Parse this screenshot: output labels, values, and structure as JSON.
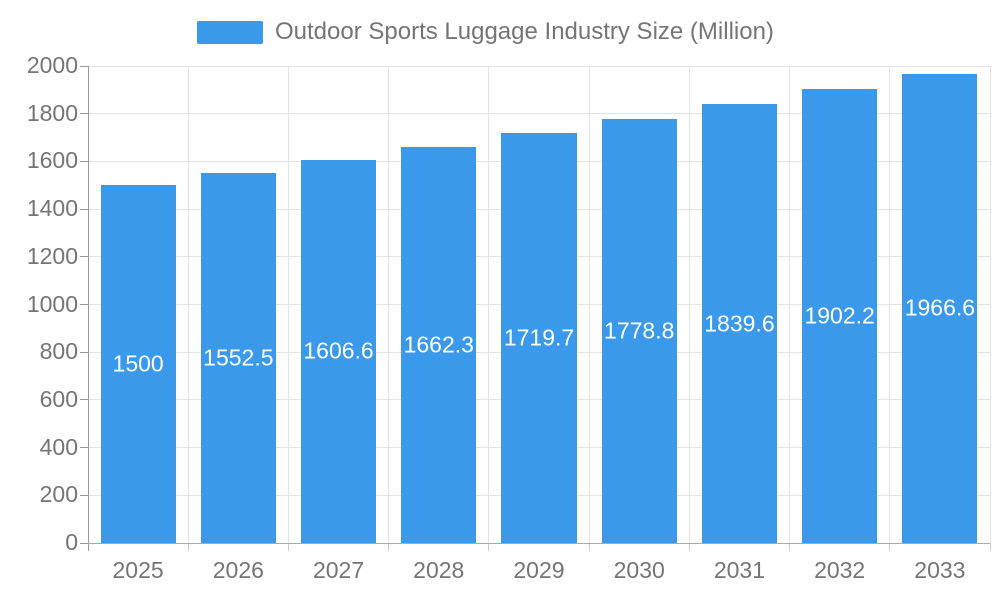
{
  "chart_data": {
    "type": "bar",
    "title": "",
    "legend": "Outdoor Sports Luggage Industry Size (Million)",
    "legend_position": "top",
    "categories": [
      "2025",
      "2026",
      "2027",
      "2028",
      "2029",
      "2030",
      "2031",
      "2032",
      "2033"
    ],
    "series": [
      {
        "name": "Outdoor Sports Luggage Industry Size (Million)",
        "values": [
          1500,
          1552.5,
          1606.6,
          1662.3,
          1719.7,
          1778.8,
          1839.6,
          1902.2,
          1966.6
        ],
        "data_labels": [
          "1500",
          "1552.5",
          "1606.6",
          "1662.3",
          "1719.7",
          "1778.8",
          "1839.6",
          "1902.2",
          "1966.6"
        ]
      }
    ],
    "xlabel": "",
    "ylabel": "",
    "ylim": [
      0,
      2000
    ],
    "ytick_step": 200,
    "ytick_labels": [
      "0",
      "200",
      "400",
      "600",
      "800",
      "1000",
      "1200",
      "1400",
      "1600",
      "1800",
      "2000"
    ],
    "grid": true,
    "colors": {
      "bar": "#3b99ec",
      "value_label": "#ffffff",
      "axis_text": "#757575",
      "gridline": "#e3e3e3",
      "y_axis_line": "#999999",
      "x_axis_line": "#aaaaaa"
    }
  }
}
